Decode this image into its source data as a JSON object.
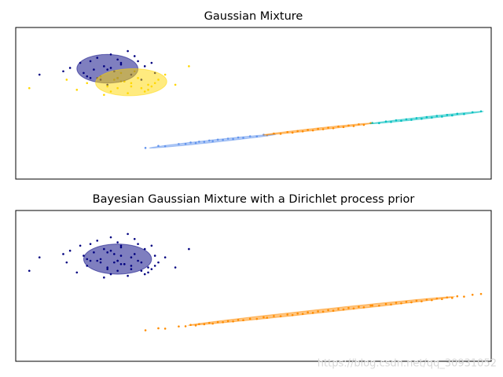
{
  "chart_data": [
    {
      "type": "scatter",
      "title": "Gaussian Mixture",
      "xlim": [
        -9,
        5
      ],
      "ylim": [
        -3,
        6
      ],
      "series": [
        {
          "color": "#000080",
          "x": [
            -6.3,
            -7.1,
            -5.6,
            -6.0,
            -6.8,
            -5.2,
            -7.4,
            -6.5,
            -5.9,
            -6.2,
            -7.0,
            -5.4,
            -6.6,
            -5.8,
            -6.1,
            -6.9,
            -5.5,
            -6.4,
            -7.6,
            -5.0,
            -6.7,
            -6.0,
            -5.7,
            -6.3,
            -8.3,
            -4.9,
            -6.2,
            -5.9,
            -6.8,
            -5.3
          ],
          "y": [
            3.5,
            3.9,
            3.2,
            4.1,
            3.0,
            3.7,
            3.6,
            2.9,
            3.8,
            4.4,
            3.3,
            4.0,
            4.2,
            2.8,
            3.4,
            3.1,
            4.3,
            3.7,
            3.4,
            3.9,
            3.5,
            3.0,
            4.6,
            2.6,
            3.2,
            3.3,
            3.6,
            3.9,
            4.0,
            2.9
          ]
        },
        {
          "color": "#ffd700",
          "x": [
            -5.8,
            -6.5,
            -5.1,
            -6.0,
            -5.4,
            -6.9,
            -4.8,
            -5.9,
            -6.3,
            -5.2,
            -5.6,
            -7.2,
            -4.6,
            -6.1,
            -5.7,
            -5.0,
            -6.6,
            -5.5,
            -4.3,
            -6.2,
            -5.9,
            -5.3,
            -7.5,
            -4.9,
            -6.0,
            -5.6,
            -8.6,
            -3.9,
            -6.4,
            -5.1
          ],
          "y": [
            2.8,
            3.1,
            2.6,
            2.4,
            3.0,
            2.7,
            2.9,
            3.3,
            2.5,
            2.2,
            2.7,
            2.3,
            3.2,
            2.9,
            2.1,
            2.5,
            3.0,
            3.4,
            2.6,
            2.2,
            2.8,
            2.4,
            2.9,
            2.7,
            3.0,
            2.5,
            2.4,
            3.7,
            2.0,
            2.3
          ]
        },
        {
          "color": "#6495ed",
          "x": [
            -5.18,
            -4.8,
            -4.6,
            -4.2,
            -4.0,
            -3.85,
            -3.7,
            -3.6,
            -3.45,
            -3.3,
            -3.2,
            -3.05,
            -2.9,
            -2.75,
            -2.6,
            -2.45,
            -2.3,
            -2.1,
            -1.9,
            -1.7
          ],
          "y": [
            -1.15,
            -1.03,
            -1.05,
            -0.92,
            -0.91,
            -0.83,
            -0.86,
            -0.78,
            -0.79,
            -0.71,
            -0.75,
            -0.66,
            -0.67,
            -0.6,
            -0.62,
            -0.53,
            -0.55,
            -0.46,
            -0.47,
            -0.37
          ]
        },
        {
          "color": "#ff8c00",
          "x": [
            -1.6,
            -1.4,
            -1.2,
            -1.0,
            -0.85,
            -0.7,
            -0.55,
            -0.4,
            -0.25,
            -0.1,
            0.05,
            0.2,
            0.35,
            0.5,
            0.65,
            0.8,
            0.95,
            1.1,
            1.25,
            1.45
          ],
          "y": [
            -0.4,
            -0.3,
            -0.31,
            -0.21,
            -0.24,
            -0.15,
            -0.17,
            -0.08,
            -0.11,
            -0.02,
            -0.04,
            0.05,
            0.02,
            0.12,
            0.09,
            0.18,
            0.15,
            0.25,
            0.22,
            0.32
          ]
        },
        {
          "color": "#00bfbf",
          "x": [
            1.5,
            1.7,
            1.9,
            2.05,
            2.2,
            2.35,
            2.5,
            2.65,
            2.8,
            2.95,
            3.1,
            3.25,
            3.4,
            3.55,
            3.7,
            3.85,
            4.0,
            4.2,
            4.45,
            4.7
          ],
          "y": [
            0.33,
            0.32,
            0.42,
            0.39,
            0.49,
            0.46,
            0.55,
            0.52,
            0.62,
            0.58,
            0.68,
            0.65,
            0.75,
            0.71,
            0.81,
            0.78,
            0.88,
            0.86,
            0.97,
            1.02
          ]
        }
      ],
      "ellipses": [
        {
          "color": "#000080",
          "center": [
            -6.3,
            3.55
          ],
          "width": 1.8,
          "height": 1.7,
          "angle": -5
        },
        {
          "color": "#ffd700",
          "center": [
            -5.6,
            2.75
          ],
          "width": 2.1,
          "height": 1.6,
          "angle": 5
        },
        {
          "color": "#6495ed",
          "center": [
            -3.2,
            -0.75
          ],
          "width": 3.8,
          "height": 0.15,
          "angle": 12.3
        },
        {
          "color": "#ff8c00",
          "center": [
            -0.1,
            -0.03
          ],
          "width": 3.3,
          "height": 0.12,
          "angle": 12.3
        },
        {
          "color": "#00bfbf",
          "center": [
            3.1,
            0.65
          ],
          "width": 3.4,
          "height": 0.12,
          "angle": 12.3
        }
      ]
    },
    {
      "type": "scatter",
      "title": "Bayesian Gaussian Mixture with a Dirichlet process prior",
      "xlim": [
        -9,
        5
      ],
      "ylim": [
        -3,
        6
      ],
      "series": [
        {
          "color": "#000080",
          "x": [
            -6.3,
            -7.1,
            -5.6,
            -6.0,
            -6.8,
            -5.2,
            -7.4,
            -6.5,
            -5.9,
            -6.2,
            -7.0,
            -5.4,
            -6.6,
            -5.8,
            -6.1,
            -6.9,
            -5.5,
            -6.4,
            -7.6,
            -5.0,
            -6.7,
            -6.0,
            -5.7,
            -6.3,
            -8.3,
            -4.9,
            -6.2,
            -5.9,
            -6.8,
            -5.3,
            -5.8,
            -6.5,
            -5.1,
            -6.0,
            -5.4,
            -6.9,
            -4.8,
            -5.9,
            -6.3,
            -5.2,
            -5.6,
            -7.2,
            -4.6,
            -6.1,
            -5.7,
            -5.0,
            -6.6,
            -5.5,
            -4.3,
            -6.2,
            -5.9,
            -5.3,
            -7.5,
            -4.9,
            -6.0,
            -5.6,
            -8.6,
            -3.9,
            -6.4,
            -5.1
          ],
          "y": [
            3.5,
            3.9,
            3.2,
            4.1,
            3.0,
            3.7,
            3.6,
            2.9,
            3.8,
            4.4,
            3.3,
            4.0,
            4.2,
            2.8,
            3.4,
            3.1,
            4.3,
            3.7,
            3.4,
            3.9,
            3.5,
            3.0,
            4.6,
            2.6,
            3.2,
            3.3,
            3.6,
            3.9,
            4.0,
            2.9,
            2.8,
            3.1,
            2.6,
            2.4,
            3.0,
            2.7,
            2.9,
            3.3,
            2.5,
            2.2,
            2.7,
            2.3,
            3.2,
            2.9,
            2.1,
            2.5,
            3.0,
            3.4,
            2.6,
            2.2,
            2.8,
            2.4,
            2.9,
            2.7,
            3.0,
            2.5,
            2.4,
            3.7,
            2.0,
            2.3
          ]
        },
        {
          "color": "#ff8c00",
          "x": [
            -5.18,
            -4.8,
            -4.6,
            -4.2,
            -4.0,
            -3.85,
            -3.7,
            -3.6,
            -3.45,
            -3.3,
            -3.2,
            -3.05,
            -2.9,
            -2.75,
            -2.6,
            -2.45,
            -2.3,
            -2.1,
            -1.9,
            -1.7,
            -1.6,
            -1.4,
            -1.2,
            -1.0,
            -0.85,
            -0.7,
            -0.55,
            -0.4,
            -0.25,
            -0.1,
            0.05,
            0.2,
            0.35,
            0.5,
            0.65,
            0.8,
            0.95,
            1.1,
            1.25,
            1.45,
            1.5,
            1.7,
            1.9,
            2.05,
            2.2,
            2.35,
            2.5,
            2.65,
            2.8,
            2.95,
            3.1,
            3.25,
            3.4,
            3.55,
            3.7,
            3.85,
            4.0,
            4.2,
            4.45,
            4.7
          ],
          "y": [
            -1.15,
            -1.03,
            -1.05,
            -0.92,
            -0.91,
            -0.83,
            -0.86,
            -0.78,
            -0.79,
            -0.71,
            -0.75,
            -0.66,
            -0.67,
            -0.6,
            -0.62,
            -0.53,
            -0.55,
            -0.46,
            -0.47,
            -0.37,
            -0.4,
            -0.3,
            -0.31,
            -0.21,
            -0.24,
            -0.15,
            -0.17,
            -0.08,
            -0.11,
            -0.02,
            -0.04,
            0.05,
            0.02,
            0.12,
            0.09,
            0.18,
            0.15,
            0.25,
            0.22,
            0.32,
            0.33,
            0.32,
            0.42,
            0.39,
            0.49,
            0.46,
            0.55,
            0.52,
            0.62,
            0.58,
            0.68,
            0.65,
            0.75,
            0.71,
            0.81,
            0.78,
            0.88,
            0.86,
            0.97,
            1.02
          ]
        }
      ],
      "ellipses": [
        {
          "color": "#000080",
          "center": [
            -6.0,
            3.1
          ],
          "width": 2.0,
          "height": 1.8,
          "angle": 0
        },
        {
          "color": "#ff8c00",
          "center": [
            0.0,
            0.0
          ],
          "width": 8.0,
          "height": 0.2,
          "angle": 12.3
        }
      ]
    }
  ],
  "watermark": "https://blog.csdn.net/qq_30931052"
}
